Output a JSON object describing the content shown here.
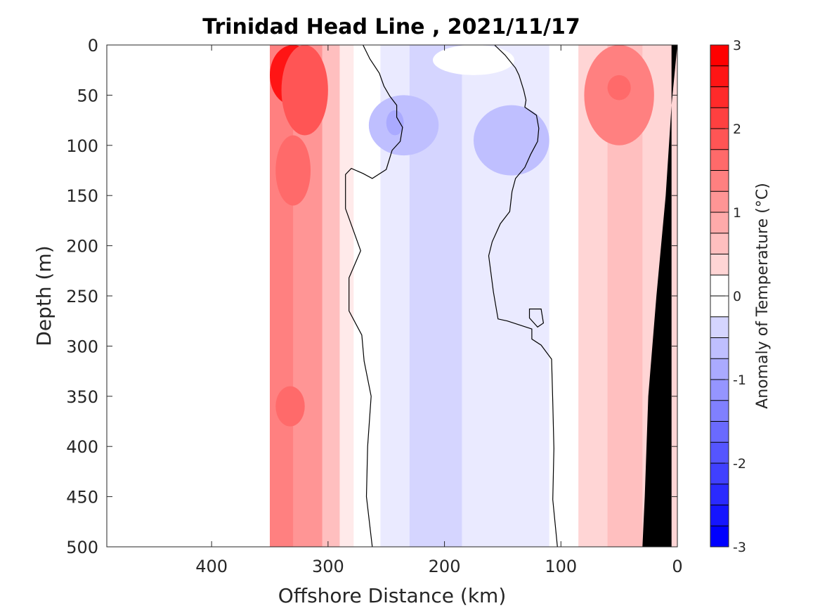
{
  "chart_data": {
    "type": "heatmap",
    "title": "Trinidad Head Line , 2021/11/17",
    "xlabel": "Offshore Distance (km)",
    "ylabel": "Depth (m)",
    "xlim": [
      490,
      0
    ],
    "ylim": [
      0,
      500
    ],
    "x_reversed": true,
    "y_reversed": true,
    "xticks": [
      400,
      300,
      200,
      100,
      0
    ],
    "yticks": [
      0,
      50,
      100,
      150,
      200,
      250,
      300,
      350,
      400,
      450,
      500
    ],
    "colorbar": {
      "label": "Anomaly of Temperature (°C)",
      "range": [
        -3,
        3
      ],
      "ticks": [
        3,
        2,
        1,
        0,
        -1,
        -2,
        -3
      ],
      "level_step": 0.25,
      "colormap": "blue-white-red",
      "low_color": "#0000ff",
      "high_color": "#ff0000",
      "zero_contour_color": "#000000"
    },
    "no_data_region": {
      "x_from": 490,
      "x_to": 350
    },
    "bathymetry_color": "#000000",
    "anomaly_bands": [
      {
        "x_from": 350,
        "x_to": 330,
        "value": 1.5
      },
      {
        "x_from": 330,
        "x_to": 305,
        "value": 1.25
      },
      {
        "x_from": 305,
        "x_to": 290,
        "value": 0.75
      },
      {
        "x_from": 290,
        "x_to": 278,
        "value": 0.25
      },
      {
        "x_from": 278,
        "x_to": 255,
        "value": 0.0
      },
      {
        "x_from": 255,
        "x_to": 230,
        "value": -0.25
      },
      {
        "x_from": 230,
        "x_to": 185,
        "value": -0.5
      },
      {
        "x_from": 185,
        "x_to": 155,
        "value": -0.25
      },
      {
        "x_from": 155,
        "x_to": 110,
        "value": -0.25
      },
      {
        "x_from": 110,
        "x_to": 85,
        "value": 0.0
      },
      {
        "x_from": 85,
        "x_to": 60,
        "value": 0.5
      },
      {
        "x_from": 60,
        "x_to": 30,
        "value": 0.75
      },
      {
        "x_from": 30,
        "x_to": 0,
        "value": 0.5
      }
    ],
    "anomaly_patches": [
      {
        "x": [
          350,
          310
        ],
        "y": [
          0,
          60
        ],
        "value": 2.75
      },
      {
        "x": [
          340,
          300
        ],
        "y": [
          0,
          90
        ],
        "value": 2.0
      },
      {
        "x": [
          345,
          315
        ],
        "y": [
          90,
          160
        ],
        "value": 1.75
      },
      {
        "x": [
          345,
          320
        ],
        "y": [
          340,
          380
        ],
        "value": 1.75
      },
      {
        "x": [
          265,
          205
        ],
        "y": [
          50,
          110
        ],
        "value": -0.75
      },
      {
        "x": [
          250,
          235
        ],
        "y": [
          65,
          90
        ],
        "value": -1.0
      },
      {
        "x": [
          175,
          110
        ],
        "y": [
          60,
          130
        ],
        "value": -0.75
      },
      {
        "x": [
          80,
          20
        ],
        "y": [
          0,
          100
        ],
        "value": 1.5
      },
      {
        "x": [
          60,
          40
        ],
        "y": [
          30,
          55
        ],
        "value": 1.75
      },
      {
        "x": [
          210,
          140
        ],
        "y": [
          0,
          30
        ],
        "value": 0.0
      }
    ],
    "zero_contours": [
      [
        [
          270,
          0
        ],
        [
          264,
          14
        ],
        [
          256,
          28
        ],
        [
          252,
          41
        ],
        [
          247,
          51
        ],
        [
          241,
          60
        ],
        [
          241,
          72
        ],
        [
          236,
          82
        ],
        [
          238,
          96
        ],
        [
          245,
          105
        ],
        [
          250,
          124
        ],
        [
          262,
          133
        ],
        [
          270,
          128
        ],
        [
          280,
          123
        ],
        [
          285,
          129
        ],
        [
          285,
          163
        ],
        [
          272,
          205
        ],
        [
          282,
          232
        ],
        [
          282,
          265
        ],
        [
          271,
          289
        ],
        [
          269,
          315
        ],
        [
          263,
          350
        ],
        [
          266,
          400
        ],
        [
          267,
          450
        ],
        [
          262,
          500
        ]
      ],
      [
        [
          157,
          0
        ],
        [
          148,
          10
        ],
        [
          139,
          23
        ],
        [
          136,
          30
        ],
        [
          132,
          45
        ],
        [
          130,
          55
        ],
        [
          131,
          62
        ],
        [
          121,
          70
        ],
        [
          119,
          83
        ],
        [
          120,
          96
        ],
        [
          126,
          109
        ],
        [
          131,
          122
        ],
        [
          139,
          133
        ],
        [
          142,
          146
        ],
        [
          144,
          166
        ],
        [
          152,
          178
        ],
        [
          159,
          196
        ],
        [
          162,
          210
        ],
        [
          158,
          246
        ],
        [
          154,
          273
        ],
        [
          146,
          275
        ],
        [
          125,
          283
        ],
        [
          125,
          293
        ],
        [
          117,
          299
        ],
        [
          108,
          313
        ],
        [
          107,
          356
        ],
        [
          106,
          402
        ],
        [
          107,
          453
        ],
        [
          103,
          500
        ]
      ]
    ],
    "zero_contour_loops": [
      [
        [
          127,
          263
        ],
        [
          117,
          263
        ],
        [
          115,
          277
        ],
        [
          120,
          281
        ],
        [
          127,
          272
        ],
        [
          127,
          263
        ]
      ]
    ],
    "bathymetry": [
      [
        0,
        0
      ],
      [
        5,
        0
      ],
      [
        5,
        500
      ],
      [
        30,
        500
      ],
      [
        28,
        450
      ],
      [
        25,
        350
      ],
      [
        18,
        250
      ],
      [
        10,
        150
      ],
      [
        5,
        60
      ]
    ]
  }
}
